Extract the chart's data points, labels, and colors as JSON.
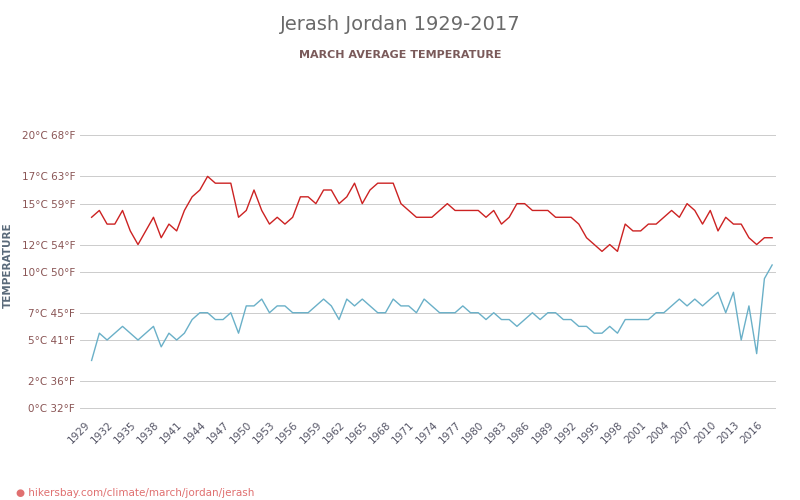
{
  "title": "Jerash Jordan 1929-2017",
  "subtitle": "MARCH AVERAGE TEMPERATURE",
  "xlabel_url": "hikersbay.com/climate/march/jordan/jerash",
  "ylabel": "TEMPERATURE",
  "title_color": "#6a6a6a",
  "subtitle_color": "#7a5a5a",
  "ylabel_color": "#5a6a7a",
  "background_color": "#ffffff",
  "grid_color": "#cccccc",
  "night_color": "#6ab0c8",
  "day_color": "#cc2222",
  "yticks_c": [
    0,
    2,
    5,
    7,
    10,
    12,
    15,
    17,
    20
  ],
  "yticks_f": [
    32,
    36,
    41,
    45,
    50,
    54,
    59,
    63,
    68
  ],
  "ylim": [
    -0.5,
    21.5
  ],
  "xlim": [
    1927.5,
    2017.5
  ],
  "night_data": {
    "1929": 3.5,
    "1930": 5.5,
    "1931": 5.0,
    "1932": 5.5,
    "1933": 6.0,
    "1934": 5.5,
    "1935": 5.0,
    "1936": 5.5,
    "1937": 6.0,
    "1938": 4.5,
    "1939": 5.5,
    "1940": 5.0,
    "1941": 5.5,
    "1942": 6.5,
    "1943": 7.0,
    "1944": 7.0,
    "1945": 6.5,
    "1946": 6.5,
    "1947": 7.0,
    "1948": 5.5,
    "1949": 7.5,
    "1950": 7.5,
    "1951": 8.0,
    "1952": 7.0,
    "1953": 7.5,
    "1954": 7.5,
    "1955": 7.0,
    "1956": 7.0,
    "1957": 7.0,
    "1958": 7.5,
    "1959": 8.0,
    "1960": 7.5,
    "1961": 6.5,
    "1962": 8.0,
    "1963": 7.5,
    "1964": 8.0,
    "1965": 7.5,
    "1966": 7.0,
    "1967": 7.0,
    "1968": 8.0,
    "1969": 7.5,
    "1970": 7.5,
    "1971": 7.0,
    "1972": 8.0,
    "1973": 7.5,
    "1974": 7.0,
    "1975": 7.0,
    "1976": 7.0,
    "1977": 7.5,
    "1978": 7.0,
    "1979": 7.0,
    "1980": 6.5,
    "1981": 7.0,
    "1982": 6.5,
    "1983": 6.5,
    "1984": 6.0,
    "1985": 6.5,
    "1986": 7.0,
    "1987": 6.5,
    "1988": 7.0,
    "1989": 7.0,
    "1990": 6.5,
    "1991": 6.5,
    "1992": 6.0,
    "1993": 6.0,
    "1994": 5.5,
    "1995": 5.5,
    "1996": 6.0,
    "1997": 5.5,
    "1998": 6.5,
    "1999": 6.5,
    "2000": 6.5,
    "2001": 6.5,
    "2002": 7.0,
    "2003": 7.0,
    "2004": 7.5,
    "2005": 8.0,
    "2006": 7.5,
    "2007": 8.0,
    "2008": 7.5,
    "2009": 8.0,
    "2010": 8.5,
    "2011": 7.0,
    "2012": 8.5,
    "2013": 5.0,
    "2014": 7.5,
    "2015": 4.0,
    "2016": 9.5,
    "2017": 10.5
  },
  "day_data": {
    "1929": 14.0,
    "1930": 14.5,
    "1931": 13.5,
    "1932": 13.5,
    "1933": 14.5,
    "1934": 13.0,
    "1935": 12.0,
    "1936": 13.0,
    "1937": 14.0,
    "1938": 12.5,
    "1939": 13.5,
    "1940": 13.0,
    "1941": 14.5,
    "1942": 15.5,
    "1943": 16.0,
    "1944": 17.0,
    "1945": 16.5,
    "1946": 16.5,
    "1947": 16.5,
    "1948": 14.0,
    "1949": 14.5,
    "1950": 16.0,
    "1951": 14.5,
    "1952": 13.5,
    "1953": 14.0,
    "1954": 13.5,
    "1955": 14.0,
    "1956": 15.5,
    "1957": 15.5,
    "1958": 15.0,
    "1959": 16.0,
    "1960": 16.0,
    "1961": 15.0,
    "1962": 15.5,
    "1963": 16.5,
    "1964": 15.0,
    "1965": 16.0,
    "1966": 16.5,
    "1967": 16.5,
    "1968": 16.5,
    "1969": 15.0,
    "1970": 14.5,
    "1971": 14.0,
    "1972": 14.0,
    "1973": 14.0,
    "1974": 14.5,
    "1975": 15.0,
    "1976": 14.5,
    "1977": 14.5,
    "1978": 14.5,
    "1979": 14.5,
    "1980": 14.0,
    "1981": 14.5,
    "1982": 13.5,
    "1983": 14.0,
    "1984": 15.0,
    "1985": 15.0,
    "1986": 14.5,
    "1987": 14.5,
    "1988": 14.5,
    "1989": 14.0,
    "1990": 14.0,
    "1991": 14.0,
    "1992": 13.5,
    "1993": 12.5,
    "1994": 12.0,
    "1995": 11.5,
    "1996": 12.0,
    "1997": 11.5,
    "1998": 13.5,
    "1999": 13.0,
    "2000": 13.0,
    "2001": 13.5,
    "2002": 13.5,
    "2003": 14.0,
    "2004": 14.5,
    "2005": 14.0,
    "2006": 15.0,
    "2007": 14.5,
    "2008": 13.5,
    "2009": 14.5,
    "2010": 13.0,
    "2011": 14.0,
    "2012": 13.5,
    "2013": 13.5,
    "2014": 12.5,
    "2015": 12.0,
    "2016": 12.5,
    "2017": 12.5
  }
}
